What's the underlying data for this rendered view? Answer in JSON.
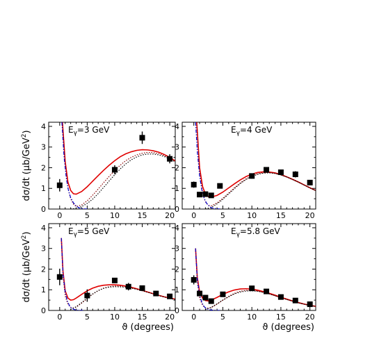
{
  "chart_data": [
    {
      "type": "scatter",
      "label": "Eγ=3 GeV",
      "xlabel": "",
      "ylabel": "dσ/dt (μb/GeV²)",
      "xlim": [
        -2,
        21
      ],
      "ylim": [
        0,
        4.2
      ],
      "x_ticks": [
        "0",
        "5",
        "10",
        "15",
        "20"
      ],
      "y_ticks": [
        "0",
        "1",
        "2",
        "3",
        "4"
      ],
      "points": [
        {
          "x": 0,
          "y": 1.15,
          "err": 0.3
        },
        {
          "x": 10,
          "y": 1.9,
          "err": 0.22
        },
        {
          "x": 15,
          "y": 3.45,
          "err": 0.3
        },
        {
          "x": 20,
          "y": 2.43,
          "err": 0.22
        }
      ],
      "curves": [
        {
          "style": "solid",
          "color": "#e00000",
          "x": [
            0.5,
            1,
            1.5,
            2,
            2.5,
            3,
            4,
            5,
            6,
            7,
            8,
            9,
            10,
            11,
            12,
            13,
            14,
            15,
            16,
            17,
            18,
            19,
            20,
            21
          ],
          "y": [
            4.2,
            2.3,
            1.3,
            0.9,
            0.74,
            0.72,
            0.85,
            1.08,
            1.35,
            1.62,
            1.88,
            2.12,
            2.34,
            2.53,
            2.67,
            2.77,
            2.84,
            2.87,
            2.86,
            2.82,
            2.75,
            2.64,
            2.5,
            2.33
          ]
        },
        {
          "style": "dotted",
          "color": "#8b0000",
          "x": [
            0.5,
            1,
            1.5,
            2,
            2.5,
            3,
            4,
            5,
            6,
            7,
            8,
            9,
            10,
            11,
            12,
            13,
            14,
            15,
            16,
            17,
            18,
            19,
            20,
            21
          ],
          "y": [
            4.2,
            2.1,
            1.0,
            0.5,
            0.24,
            0.12,
            0.2,
            0.4,
            0.67,
            0.97,
            1.28,
            1.58,
            1.87,
            2.12,
            2.34,
            2.5,
            2.62,
            2.7,
            2.74,
            2.73,
            2.68,
            2.59,
            2.46,
            2.3
          ]
        },
        {
          "style": "dotted",
          "color": "#000000",
          "x": [
            2,
            3,
            4,
            5,
            6,
            7,
            8,
            9,
            10,
            11,
            12,
            13,
            14,
            15,
            16,
            17,
            18,
            19,
            20,
            21
          ],
          "y": [
            0,
            0.03,
            0.12,
            0.27,
            0.48,
            0.75,
            1.05,
            1.36,
            1.66,
            1.94,
            2.18,
            2.38,
            2.52,
            2.62,
            2.66,
            2.66,
            2.62,
            2.54,
            2.43,
            2.28
          ]
        },
        {
          "style": "dashdot",
          "color": "#0000cc",
          "x": [
            0.4,
            0.8,
            1.2,
            1.6,
            2,
            2.5,
            3,
            3.5,
            4,
            5
          ],
          "y": [
            4.2,
            2.5,
            1.5,
            0.9,
            0.55,
            0.3,
            0.15,
            0.06,
            0.02,
            0
          ]
        }
      ]
    },
    {
      "type": "scatter",
      "label": "Eγ=4 GeV",
      "xlabel": "",
      "ylabel": "",
      "xlim": [
        -2,
        21
      ],
      "ylim": [
        0,
        4.2
      ],
      "x_ticks": [
        "0",
        "5",
        "10",
        "15",
        "20"
      ],
      "y_ticks": [
        "0",
        "1",
        "2",
        "3",
        "4"
      ],
      "points": [
        {
          "x": 0,
          "y": 1.18,
          "err": 0.15
        },
        {
          "x": 1,
          "y": 0.7,
          "err": 0.12
        },
        {
          "x": 2,
          "y": 0.72,
          "err": 0.1
        },
        {
          "x": 3,
          "y": 0.66,
          "err": 0.1
        },
        {
          "x": 4.5,
          "y": 1.12,
          "err": 0.1
        },
        {
          "x": 10,
          "y": 1.6,
          "err": 0.13
        },
        {
          "x": 12.5,
          "y": 1.9,
          "err": 0.1
        },
        {
          "x": 15,
          "y": 1.78,
          "err": 0.1
        },
        {
          "x": 17.5,
          "y": 1.68,
          "err": 0.15
        },
        {
          "x": 20,
          "y": 1.28,
          "err": 0.12
        }
      ],
      "curves": [
        {
          "style": "solid",
          "color": "#e00000",
          "x": [
            0.5,
            1,
            1.5,
            2,
            2.5,
            3,
            4,
            5,
            6,
            7,
            8,
            9,
            10,
            11,
            12,
            13,
            14,
            15,
            16,
            17,
            18,
            19,
            20,
            21
          ],
          "y": [
            4.2,
            2.0,
            1.1,
            0.72,
            0.6,
            0.58,
            0.66,
            0.82,
            1.02,
            1.22,
            1.41,
            1.57,
            1.69,
            1.77,
            1.8,
            1.79,
            1.75,
            1.67,
            1.56,
            1.44,
            1.31,
            1.17,
            1.03,
            0.9
          ]
        },
        {
          "style": "dotted",
          "color": "#8b0000",
          "x": [
            0.5,
            1,
            1.5,
            2,
            2.5,
            3,
            4,
            5,
            6,
            7,
            8,
            9,
            10,
            11,
            12,
            13,
            14,
            15,
            16,
            17,
            18,
            19,
            20,
            21
          ],
          "y": [
            4.2,
            1.8,
            0.8,
            0.35,
            0.18,
            0.15,
            0.3,
            0.52,
            0.77,
            1.03,
            1.26,
            1.46,
            1.61,
            1.71,
            1.76,
            1.77,
            1.73,
            1.65,
            1.55,
            1.43,
            1.3,
            1.16,
            1.02,
            0.89
          ]
        },
        {
          "style": "dotted",
          "color": "#000000",
          "x": [
            2,
            3,
            4,
            5,
            6,
            7,
            8,
            9,
            10,
            11,
            12,
            13,
            14,
            15,
            16,
            17,
            18,
            19,
            20,
            21
          ],
          "y": [
            0,
            0.08,
            0.25,
            0.47,
            0.73,
            0.99,
            1.23,
            1.43,
            1.58,
            1.68,
            1.74,
            1.75,
            1.72,
            1.65,
            1.55,
            1.43,
            1.3,
            1.16,
            1.02,
            0.89
          ]
        },
        {
          "style": "dashdot",
          "color": "#0000cc",
          "x": [
            0.3,
            0.6,
            1,
            1.4,
            1.8,
            2.2,
            2.6,
            3,
            3.5,
            4.5
          ],
          "y": [
            4.2,
            2.8,
            1.6,
            0.9,
            0.5,
            0.28,
            0.15,
            0.07,
            0.03,
            0
          ]
        }
      ]
    },
    {
      "type": "scatter",
      "label": "Eγ=5 GeV",
      "xlabel": "ϑ (degrees)",
      "ylabel": "dσ/dt (μb/GeV²)",
      "xlim": [
        -2,
        21
      ],
      "ylim": [
        0,
        4.2
      ],
      "x_ticks": [
        "0",
        "5",
        "10",
        "15",
        "20"
      ],
      "y_ticks": [
        "0",
        "1",
        "2",
        "3",
        "4"
      ],
      "points": [
        {
          "x": 0,
          "y": 1.62,
          "err": 0.4
        },
        {
          "x": 5,
          "y": 0.72,
          "err": 0.3
        },
        {
          "x": 10,
          "y": 1.45,
          "err": 0.12
        },
        {
          "x": 12.5,
          "y": 1.15,
          "err": 0.18
        },
        {
          "x": 15,
          "y": 1.08,
          "err": 0.1
        },
        {
          "x": 17.5,
          "y": 0.82,
          "err": 0.1
        },
        {
          "x": 20,
          "y": 0.68,
          "err": 0.08
        }
      ],
      "curves": [
        {
          "style": "solid",
          "color": "#e00000",
          "x": [
            0.3,
            0.6,
            1,
            1.5,
            2,
            2.5,
            3,
            4,
            5,
            6,
            7,
            8,
            9,
            10,
            11,
            12,
            13,
            14,
            15,
            16,
            17,
            18,
            19,
            20,
            21
          ],
          "y": [
            3.5,
            1.9,
            0.95,
            0.6,
            0.5,
            0.52,
            0.6,
            0.78,
            0.95,
            1.08,
            1.17,
            1.22,
            1.24,
            1.24,
            1.22,
            1.18,
            1.12,
            1.05,
            0.97,
            0.89,
            0.81,
            0.73,
            0.66,
            0.6,
            0.55
          ]
        },
        {
          "style": "dotted",
          "color": "#8b0000",
          "x": [
            0.3,
            0.6,
            1,
            1.5,
            2,
            2.5,
            3,
            4,
            5,
            6,
            7,
            8,
            9,
            10,
            11,
            12,
            13,
            14,
            15,
            16,
            17,
            18,
            19,
            20,
            21
          ],
          "y": [
            3.5,
            1.7,
            0.7,
            0.3,
            0.15,
            0.12,
            0.16,
            0.35,
            0.58,
            0.79,
            0.96,
            1.08,
            1.15,
            1.18,
            1.18,
            1.15,
            1.1,
            1.03,
            0.96,
            0.88,
            0.8,
            0.72,
            0.65,
            0.59,
            0.54
          ]
        },
        {
          "style": "dotted",
          "color": "#000000",
          "x": [
            2,
            3,
            4,
            5,
            6,
            7,
            8,
            9,
            10,
            11,
            12,
            13,
            14,
            15,
            16,
            17,
            18,
            19,
            20,
            21
          ],
          "y": [
            0.05,
            0.18,
            0.38,
            0.6,
            0.8,
            0.96,
            1.07,
            1.13,
            1.15,
            1.14,
            1.12,
            1.08,
            1.02,
            0.95,
            0.88,
            0.8,
            0.72,
            0.65,
            0.58,
            0.53
          ]
        },
        {
          "style": "dashdot",
          "color": "#0000cc",
          "x": [
            0.3,
            0.6,
            1,
            1.4,
            1.8,
            2.2,
            2.6,
            3,
            3.5,
            4.5
          ],
          "y": [
            3.5,
            1.8,
            0.9,
            0.45,
            0.22,
            0.1,
            0.05,
            0.02,
            0.01,
            0
          ]
        }
      ]
    },
    {
      "type": "scatter",
      "label": "Eγ=5.8 GeV",
      "xlabel": "ϑ (degrees)",
      "ylabel": "",
      "xlim": [
        -2,
        21
      ],
      "ylim": [
        0,
        4.2
      ],
      "x_ticks": [
        "0",
        "5",
        "10",
        "15",
        "20"
      ],
      "y_ticks": [
        "0",
        "1",
        "2",
        "3",
        "4"
      ],
      "points": [
        {
          "x": 0,
          "y": 1.48,
          "err": 0.22
        },
        {
          "x": 1,
          "y": 0.82,
          "err": 0.12
        },
        {
          "x": 2,
          "y": 0.62,
          "err": 0.1
        },
        {
          "x": 3,
          "y": 0.45,
          "err": 0.08
        },
        {
          "x": 5,
          "y": 0.78,
          "err": 0.1
        },
        {
          "x": 10,
          "y": 1.07,
          "err": 0.1
        },
        {
          "x": 12.5,
          "y": 0.92,
          "err": 0.1
        },
        {
          "x": 15,
          "y": 0.65,
          "err": 0.08
        },
        {
          "x": 17.5,
          "y": 0.48,
          "err": 0.07
        },
        {
          "x": 20,
          "y": 0.3,
          "err": 0.06
        }
      ],
      "curves": [
        {
          "style": "solid",
          "color": "#e00000",
          "x": [
            0.3,
            0.6,
            1,
            1.5,
            2,
            2.5,
            3,
            4,
            5,
            6,
            7,
            8,
            9,
            10,
            11,
            12,
            13,
            14,
            15,
            16,
            17,
            18,
            19,
            20,
            21
          ],
          "y": [
            3.0,
            1.6,
            0.9,
            0.6,
            0.48,
            0.46,
            0.5,
            0.63,
            0.78,
            0.9,
            0.99,
            1.04,
            1.05,
            1.03,
            0.98,
            0.91,
            0.83,
            0.74,
            0.64,
            0.55,
            0.46,
            0.38,
            0.31,
            0.25,
            0.2
          ]
        },
        {
          "style": "dotted",
          "color": "#8b0000",
          "x": [
            0.3,
            0.6,
            1,
            1.5,
            2,
            2.5,
            3,
            4,
            5,
            6,
            7,
            8,
            9,
            10,
            11,
            12,
            13,
            14,
            15,
            16,
            17,
            18,
            19,
            20,
            21
          ],
          "y": [
            3.0,
            1.4,
            0.6,
            0.25,
            0.12,
            0.1,
            0.14,
            0.3,
            0.5,
            0.68,
            0.83,
            0.93,
            0.97,
            0.97,
            0.94,
            0.88,
            0.8,
            0.71,
            0.62,
            0.53,
            0.45,
            0.37,
            0.3,
            0.24,
            0.19
          ]
        },
        {
          "style": "dotted",
          "color": "#000000",
          "x": [
            2,
            3,
            4,
            5,
            6,
            7,
            8,
            9,
            10,
            11,
            12,
            13,
            14,
            15,
            16,
            17,
            18,
            19,
            20,
            21
          ],
          "y": [
            0.05,
            0.15,
            0.32,
            0.5,
            0.66,
            0.8,
            0.89,
            0.94,
            0.95,
            0.93,
            0.87,
            0.8,
            0.71,
            0.62,
            0.53,
            0.45,
            0.37,
            0.3,
            0.24,
            0.19
          ]
        },
        {
          "style": "dashdot",
          "color": "#0000cc",
          "x": [
            0.3,
            0.6,
            1,
            1.4,
            1.8,
            2.2,
            2.6,
            3,
            3.5,
            4.5
          ],
          "y": [
            3.0,
            1.5,
            0.75,
            0.38,
            0.18,
            0.08,
            0.04,
            0.02,
            0.01,
            0
          ]
        }
      ]
    }
  ]
}
